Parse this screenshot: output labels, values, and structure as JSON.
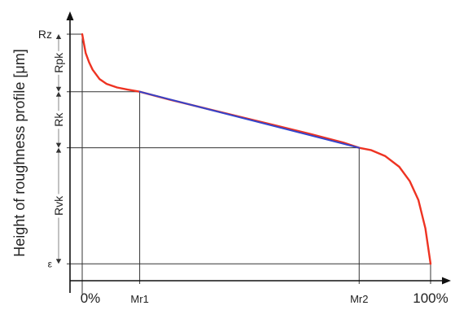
{
  "chart_data": {
    "type": "line",
    "title": "",
    "ylabel": "Height of roughness profile [μm]",
    "x_tick_labels": [
      "0%",
      "Mr1",
      "Mr2",
      "100%"
    ],
    "y_tick_labels": [
      "Rz",
      "ε"
    ],
    "region_labels": [
      "Rpk",
      "Rk",
      "Rvk"
    ],
    "x_values": {
      "0%": 0,
      "Mr1": 16.5,
      "Mr2": 79.5,
      "100%": 100
    },
    "y_values": {
      "Rz": 100,
      "upper_Rk": 75.7,
      "lower_Rk": 52,
      "ε": 3
    },
    "series": [
      {
        "color": "#ee3322",
        "x": [
          0,
          0.5,
          1,
          2,
          3,
          5,
          7,
          10,
          13,
          16.5,
          25,
          35,
          45,
          55,
          65,
          75,
          79.5,
          83,
          87,
          91,
          94,
          96.5,
          98.5,
          100
        ],
        "y": [
          100,
          96,
          92,
          88,
          85,
          81,
          79,
          77.5,
          76.6,
          75.7,
          72.4,
          68.8,
          65.2,
          61.6,
          58,
          54.2,
          52,
          51,
          48.5,
          44,
          38,
          30,
          18,
          3
        ]
      },
      {
        "color": "#3344cc",
        "x": [
          16.5,
          79.5
        ],
        "y": [
          75.7,
          52
        ]
      }
    ],
    "xlim": [
      0,
      100
    ],
    "ylim": [
      0,
      100
    ],
    "colors": {
      "axis": "#111111",
      "guide": "#333333",
      "text": "#222222"
    }
  }
}
